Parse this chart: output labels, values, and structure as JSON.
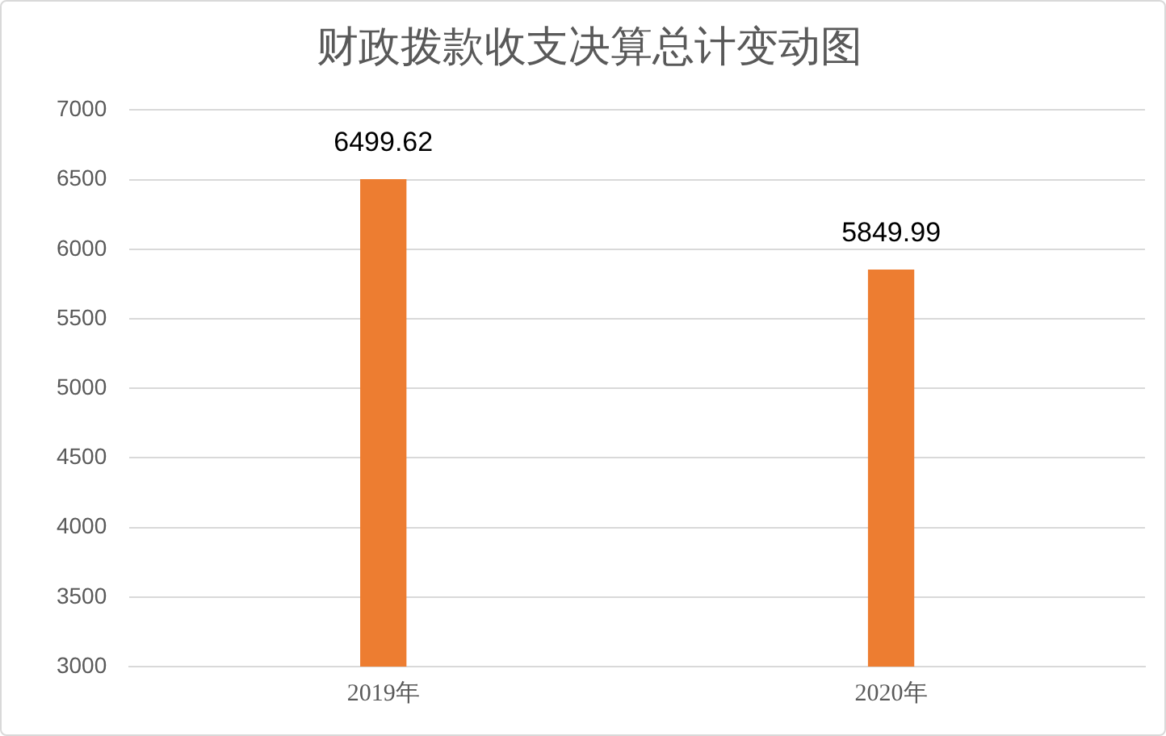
{
  "chart_data": {
    "type": "bar",
    "title": "财政拨款收支决算总计变动图",
    "categories": [
      "2019年",
      "2020年"
    ],
    "series": [
      {
        "color": "#ed7d31",
        "values": [
          6499.62,
          5849.99
        ]
      }
    ],
    "ylim": [
      3000,
      7000
    ],
    "yticks": [
      3000,
      3500,
      4000,
      4500,
      5000,
      5500,
      6000,
      6500,
      7000
    ],
    "grid": "y",
    "data_labels": true,
    "legend": false
  }
}
